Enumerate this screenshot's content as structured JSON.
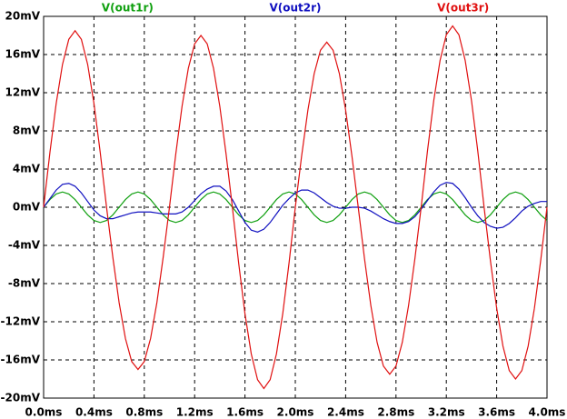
{
  "chart_data": {
    "type": "line",
    "x": [
      0,
      0.05,
      0.1,
      0.15,
      0.2,
      0.25,
      0.3,
      0.35,
      0.4,
      0.45,
      0.5,
      0.55,
      0.6,
      0.65,
      0.7,
      0.75,
      0.8,
      0.85,
      0.9,
      0.95,
      1.0,
      1.05,
      1.1,
      1.15,
      1.2,
      1.25,
      1.3,
      1.35,
      1.4,
      1.45,
      1.5,
      1.55,
      1.6,
      1.65,
      1.7,
      1.75,
      1.8,
      1.85,
      1.9,
      1.95,
      2.0,
      2.05,
      2.1,
      2.15,
      2.2,
      2.25,
      2.3,
      2.35,
      2.4,
      2.45,
      2.5,
      2.55,
      2.6,
      2.65,
      2.7,
      2.75,
      2.8,
      2.85,
      2.9,
      2.95,
      3.0,
      3.05,
      3.1,
      3.15,
      3.2,
      3.25,
      3.3,
      3.35,
      3.4,
      3.45,
      3.5,
      3.55,
      3.6,
      3.65,
      3.7,
      3.75,
      3.8,
      3.85,
      3.9,
      3.95,
      4.0
    ],
    "series": [
      {
        "name": "V(out1r)",
        "color": "#10a010",
        "values": [
          0,
          0.8,
          1.39,
          1.6,
          1.39,
          0.8,
          0,
          -0.8,
          -1.39,
          -1.6,
          -1.39,
          -0.8,
          0,
          0.8,
          1.39,
          1.6,
          1.39,
          0.8,
          0,
          -0.8,
          -1.39,
          -1.6,
          -1.39,
          -0.8,
          0,
          0.8,
          1.39,
          1.6,
          1.39,
          0.8,
          0,
          -0.8,
          -1.39,
          -1.6,
          -1.39,
          -0.8,
          0,
          0.8,
          1.39,
          1.6,
          1.39,
          0.8,
          0,
          -0.8,
          -1.39,
          -1.6,
          -1.39,
          -0.8,
          0,
          0.8,
          1.39,
          1.6,
          1.39,
          0.8,
          0,
          -0.8,
          -1.39,
          -1.6,
          -1.39,
          -0.8,
          0,
          0.8,
          1.39,
          1.6,
          1.39,
          0.8,
          0,
          -0.8,
          -1.39,
          -1.6,
          -1.39,
          -0.8,
          0,
          0.8,
          1.39,
          1.6,
          1.39,
          0.8,
          0,
          -0.8,
          -1.39
        ]
      },
      {
        "name": "V(out2r)",
        "color": "#1010c0",
        "values": [
          0,
          0.9,
          1.8,
          2.4,
          2.5,
          2.2,
          1.5,
          0.6,
          -0.3,
          -0.9,
          -1.2,
          -1.2,
          -1.0,
          -0.8,
          -0.6,
          -0.5,
          -0.5,
          -0.5,
          -0.6,
          -0.7,
          -0.7,
          -0.7,
          -0.5,
          0.0,
          0.7,
          1.4,
          1.9,
          2.2,
          2.2,
          1.7,
          0.8,
          -0.4,
          -1.6,
          -2.4,
          -2.6,
          -2.3,
          -1.6,
          -0.7,
          0.2,
          0.9,
          1.5,
          1.8,
          1.8,
          1.5,
          1.0,
          0.5,
          0.1,
          -0.1,
          -0.1,
          0.0,
          0.0,
          -0.1,
          -0.4,
          -0.8,
          -1.2,
          -1.5,
          -1.7,
          -1.7,
          -1.5,
          -1.0,
          -0.2,
          0.7,
          1.6,
          2.3,
          2.6,
          2.5,
          1.9,
          1.0,
          0.0,
          -0.9,
          -1.6,
          -2.0,
          -2.2,
          -2.1,
          -1.7,
          -1.1,
          -0.4,
          0.1,
          0.4,
          0.6,
          0.6
        ]
      },
      {
        "name": "V(out3r)",
        "color": "#e01010",
        "values": [
          0,
          5.72,
          10.88,
          14.97,
          17.59,
          18.5,
          17.59,
          14.97,
          10.88,
          5.72,
          0,
          -5.25,
          -10.0,
          -13.75,
          -16.17,
          -17,
          -16.17,
          -13.75,
          -10.0,
          -5.25,
          0,
          5.56,
          10.58,
          14.56,
          17.12,
          18,
          17.12,
          14.56,
          10.58,
          5.56,
          0,
          -5.87,
          -11.17,
          -15.37,
          -18.07,
          -19,
          -18.07,
          -15.37,
          -11.17,
          -5.87,
          0,
          5.35,
          10.17,
          14.0,
          16.45,
          17.3,
          16.45,
          14.0,
          10.17,
          5.35,
          0,
          -5.41,
          -10.29,
          -14.16,
          -16.64,
          -17.5,
          -16.64,
          -14.16,
          -10.29,
          -5.41,
          0,
          5.87,
          11.17,
          15.37,
          18.07,
          19,
          18.07,
          15.37,
          11.17,
          5.87,
          0,
          -5.56,
          -10.58,
          -14.56,
          -17.12,
          -18,
          -17.12,
          -14.56,
          -10.58,
          -5.56,
          0
        ]
      }
    ],
    "xlim": [
      0,
      4.0
    ],
    "xticks": [
      {
        "value": 0,
        "label": "0.0ms"
      },
      {
        "value": 0.4,
        "label": "0.4ms"
      },
      {
        "value": 0.8,
        "label": "0.8ms"
      },
      {
        "value": 1.2,
        "label": "1.2ms"
      },
      {
        "value": 1.6,
        "label": "1.6ms"
      },
      {
        "value": 2.0,
        "label": "2.0ms"
      },
      {
        "value": 2.4,
        "label": "2.4ms"
      },
      {
        "value": 2.8,
        "label": "2.8ms"
      },
      {
        "value": 3.2,
        "label": "3.2ms"
      },
      {
        "value": 3.6,
        "label": "3.6ms"
      },
      {
        "value": 4.0,
        "label": "4.0ms"
      }
    ],
    "ylim": [
      -20,
      20
    ],
    "yticks": [
      {
        "value": 20,
        "label": "20mV"
      },
      {
        "value": 16,
        "label": "16mV"
      },
      {
        "value": 12,
        "label": "12mV"
      },
      {
        "value": 8,
        "label": "8mV"
      },
      {
        "value": 4,
        "label": "4mV"
      },
      {
        "value": 0,
        "label": "0mV"
      },
      {
        "value": -4,
        "label": "-4mV"
      },
      {
        "value": -8,
        "label": "-8mV"
      },
      {
        "value": -12,
        "label": "-12mV"
      },
      {
        "value": -16,
        "label": "-16mV"
      },
      {
        "value": -20,
        "label": "-20mV"
      }
    ],
    "grid": true
  }
}
